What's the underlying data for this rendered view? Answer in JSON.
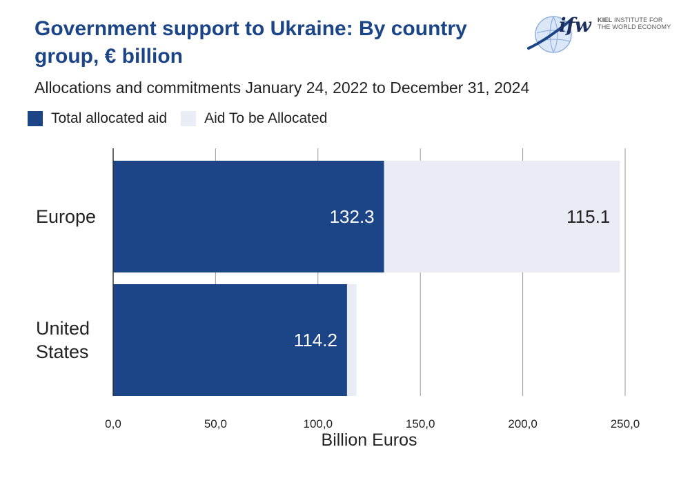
{
  "title": "Government support to Ukraine: By country group, € billion",
  "subtitle": "Allocations and commitments January 24, 2022 to December 31, 2024",
  "logo": {
    "mark": "ifw",
    "text_1": "KIEL",
    "text_2": "INSTITUTE FOR",
    "text_3": "THE WORLD ECONOMY"
  },
  "colors": {
    "allocated": "#1c4587",
    "to_be_allocated": "#e9ebf5",
    "title": "#1c4587"
  },
  "chart_data": {
    "type": "bar",
    "orientation": "horizontal",
    "stacked": true,
    "categories": [
      "Europe",
      "United States"
    ],
    "category_labels": [
      [
        "Europe"
      ],
      [
        "United",
        "States"
      ]
    ],
    "series": [
      {
        "name": "Total allocated aid",
        "values": [
          132.3,
          114.2
        ],
        "labels": [
          "132.3",
          "114.2"
        ]
      },
      {
        "name": "Aid To be Allocated",
        "values": [
          115.1,
          4.6
        ],
        "labels": [
          "115.1",
          ""
        ]
      }
    ],
    "xlabel": "Billion Euros",
    "xlim": [
      0,
      250
    ],
    "xticks": [
      0,
      50,
      100,
      150,
      200,
      250
    ],
    "xtick_labels": [
      "0,0",
      "50,0",
      "100,0",
      "150,0",
      "200,0",
      "250,0"
    ],
    "grid": "vertical",
    "legend_position": "top-left"
  }
}
